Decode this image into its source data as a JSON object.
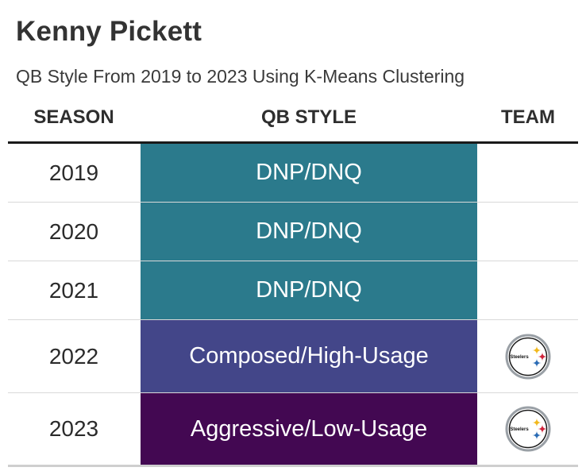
{
  "title": "Kenny Pickett",
  "subtitle": "QB Style From 2019 to 2023 Using K-Means Clustering",
  "chart_data": {
    "type": "table",
    "columns": [
      "SEASON",
      "QB STYLE",
      "TEAM"
    ],
    "rows": [
      {
        "season": "2019",
        "qb_style": "DNP/DNQ",
        "color": "#2b7a8c",
        "team_logo": ""
      },
      {
        "season": "2020",
        "qb_style": "DNP/DNQ",
        "color": "#2b7a8c",
        "team_logo": ""
      },
      {
        "season": "2021",
        "qb_style": "DNP/DNQ",
        "color": "#2b7a8c",
        "team_logo": ""
      },
      {
        "season": "2022",
        "qb_style": "Composed/High-Usage",
        "color": "#434689",
        "team_logo": "steelers-logo",
        "logo_text": "Steelers"
      },
      {
        "season": "2023",
        "qb_style": "Aggressive/Low-Usage",
        "color": "#430852",
        "team_logo": "steelers-logo",
        "logo_text": "Steelers"
      }
    ]
  }
}
